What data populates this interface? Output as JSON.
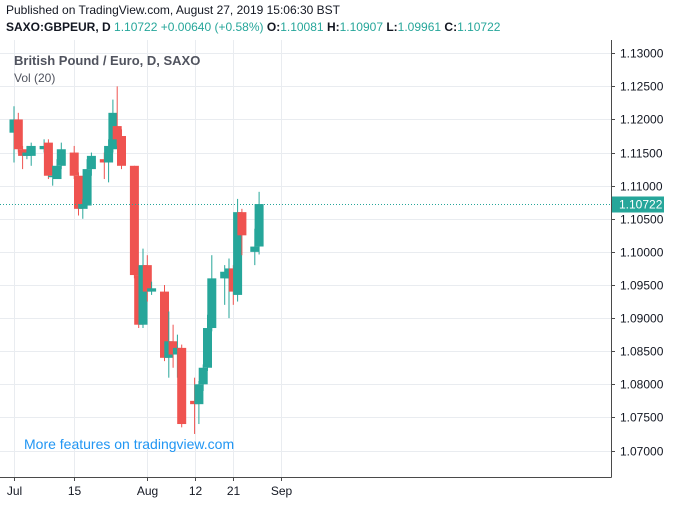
{
  "header": {
    "published": "Published on TradingView.com, August 27, 2019 15:06:30 BST",
    "symbol": "SAXO:GBPEUR, D",
    "last": "1.10722",
    "change": "+0.00640 (+0.58%)",
    "o_label": "O:",
    "o_value": "1.10081",
    "h_label": "H:",
    "h_value": "1.10907",
    "l_label": "L:",
    "l_value": "1.09961",
    "c_label": "C:",
    "c_value": "1.10722"
  },
  "legend": {
    "title": "British Pound / Euro, D, SAXO",
    "volume": "Vol (20)"
  },
  "promo": "More features on tradingview.com",
  "colors": {
    "up": "#26a69a",
    "down": "#ef5350",
    "grid": "#e9ecf0",
    "axis": "#4a4a4a",
    "promo": "#2196f3"
  },
  "chart_data": {
    "type": "candlestick",
    "ylim": [
      1.066,
      1.132
    ],
    "yticks": [
      1.07,
      1.075,
      1.08,
      1.085,
      1.09,
      1.095,
      1.1,
      1.105,
      1.11,
      1.115,
      1.12,
      1.125,
      1.13
    ],
    "ytick_labels": [
      "1.07000",
      "1.07500",
      "1.08000",
      "1.08500",
      "1.09000",
      "1.09500",
      "1.10000",
      "1.10500",
      "1.11000",
      "1.11500",
      "1.12000",
      "1.12500",
      "1.13000"
    ],
    "xticks": [
      {
        "label": "Jul",
        "date": "2019-07-01"
      },
      {
        "label": "15",
        "date": "2019-07-15"
      },
      {
        "label": "Aug",
        "date": "2019-08-01"
      },
      {
        "label": "12",
        "date": "2019-08-12"
      },
      {
        "label": "21",
        "date": "2019-08-21"
      },
      {
        "label": "Sep",
        "date": "2019-09-01"
      }
    ],
    "current_price": 1.10722,
    "current_price_label": "1.10722",
    "candles": [
      {
        "date": "2019-07-01",
        "o": 1.118,
        "h": 1.122,
        "l": 1.1135,
        "c": 1.12
      },
      {
        "date": "2019-07-02",
        "o": 1.12,
        "h": 1.121,
        "l": 1.115,
        "c": 1.1155
      },
      {
        "date": "2019-07-03",
        "o": 1.1155,
        "h": 1.116,
        "l": 1.1125,
        "c": 1.1145
      },
      {
        "date": "2019-07-04",
        "o": 1.1145,
        "h": 1.116,
        "l": 1.114,
        "c": 1.115
      },
      {
        "date": "2019-07-05",
        "o": 1.1145,
        "h": 1.1165,
        "l": 1.113,
        "c": 1.116
      },
      {
        "date": "2019-07-08",
        "o": 1.1155,
        "h": 1.117,
        "l": 1.115,
        "c": 1.116
      },
      {
        "date": "2019-07-09",
        "o": 1.1165,
        "h": 1.117,
        "l": 1.111,
        "c": 1.1115
      },
      {
        "date": "2019-07-10",
        "o": 1.1115,
        "h": 1.113,
        "l": 1.11,
        "c": 1.1115
      },
      {
        "date": "2019-07-11",
        "o": 1.111,
        "h": 1.114,
        "l": 1.111,
        "c": 1.113
      },
      {
        "date": "2019-07-12",
        "o": 1.113,
        "h": 1.1165,
        "l": 1.1125,
        "c": 1.1155
      },
      {
        "date": "2019-07-15",
        "o": 1.115,
        "h": 1.116,
        "l": 1.111,
        "c": 1.1115
      },
      {
        "date": "2019-07-16",
        "o": 1.1115,
        "h": 1.112,
        "l": 1.1055,
        "c": 1.1065
      },
      {
        "date": "2019-07-17",
        "o": 1.1065,
        "h": 1.108,
        "l": 1.105,
        "c": 1.1072
      },
      {
        "date": "2019-07-18",
        "o": 1.107,
        "h": 1.114,
        "l": 1.1065,
        "c": 1.1125
      },
      {
        "date": "2019-07-19",
        "o": 1.1125,
        "h": 1.115,
        "l": 1.1115,
        "c": 1.1145
      },
      {
        "date": "2019-07-22",
        "o": 1.114,
        "h": 1.115,
        "l": 1.111,
        "c": 1.1135
      },
      {
        "date": "2019-07-23",
        "o": 1.1135,
        "h": 1.117,
        "l": 1.1105,
        "c": 1.116
      },
      {
        "date": "2019-07-24",
        "o": 1.1155,
        "h": 1.123,
        "l": 1.115,
        "c": 1.121
      },
      {
        "date": "2019-07-25",
        "o": 1.119,
        "h": 1.125,
        "l": 1.116,
        "c": 1.117
      },
      {
        "date": "2019-07-26",
        "o": 1.1175,
        "h": 1.1185,
        "l": 1.1125,
        "c": 1.113
      },
      {
        "date": "2019-07-29",
        "o": 1.113,
        "h": 1.113,
        "l": 1.096,
        "c": 1.0965
      },
      {
        "date": "2019-07-30",
        "o": 1.0965,
        "h": 1.0975,
        "l": 1.0885,
        "c": 1.089
      },
      {
        "date": "2019-07-31",
        "o": 1.089,
        "h": 1.1005,
        "l": 1.0885,
        "c": 1.098
      },
      {
        "date": "2019-08-01",
        "o": 1.098,
        "h": 1.0995,
        "l": 1.0925,
        "c": 1.094
      },
      {
        "date": "2019-08-02",
        "o": 1.094,
        "h": 1.0955,
        "l": 1.0935,
        "c": 1.0945
      },
      {
        "date": "2019-08-05",
        "o": 1.094,
        "h": 1.095,
        "l": 1.0835,
        "c": 1.084
      },
      {
        "date": "2019-08-06",
        "o": 1.084,
        "h": 1.091,
        "l": 1.081,
        "c": 1.0865
      },
      {
        "date": "2019-08-07",
        "o": 1.0865,
        "h": 1.089,
        "l": 1.0825,
        "c": 1.0845
      },
      {
        "date": "2019-08-08",
        "o": 1.0845,
        "h": 1.0875,
        "l": 1.081,
        "c": 1.0855
      },
      {
        "date": "2019-08-09",
        "o": 1.0855,
        "h": 1.086,
        "l": 1.0735,
        "c": 1.074
      },
      {
        "date": "2019-08-12",
        "o": 1.0775,
        "h": 1.081,
        "l": 1.0725,
        "c": 1.077
      },
      {
        "date": "2019-08-13",
        "o": 1.077,
        "h": 1.0805,
        "l": 1.074,
        "c": 1.08
      },
      {
        "date": "2019-08-14",
        "o": 1.08,
        "h": 1.083,
        "l": 1.079,
        "c": 1.0825
      },
      {
        "date": "2019-08-15",
        "o": 1.0825,
        "h": 1.0905,
        "l": 1.082,
        "c": 1.0885
      },
      {
        "date": "2019-08-16",
        "o": 1.0885,
        "h": 1.0995,
        "l": 1.088,
        "c": 1.096
      },
      {
        "date": "2019-08-19",
        "o": 1.096,
        "h": 1.098,
        "l": 1.092,
        "c": 1.097
      },
      {
        "date": "2019-08-20",
        "o": 1.096,
        "h": 1.099,
        "l": 1.09,
        "c": 1.0975
      },
      {
        "date": "2019-08-21",
        "o": 1.0975,
        "h": 1.098,
        "l": 1.092,
        "c": 1.094
      },
      {
        "date": "2019-08-22",
        "o": 1.0935,
        "h": 1.108,
        "l": 1.0925,
        "c": 1.106
      },
      {
        "date": "2019-08-23",
        "o": 1.106,
        "h": 1.1065,
        "l": 1.0995,
        "c": 1.1025
      },
      {
        "date": "2019-08-26",
        "o": 1.1,
        "h": 1.1035,
        "l": 1.098,
        "c": 1.1008
      },
      {
        "date": "2019-08-27",
        "o": 1.10081,
        "h": 1.10907,
        "l": 1.09961,
        "c": 1.10722
      }
    ]
  }
}
